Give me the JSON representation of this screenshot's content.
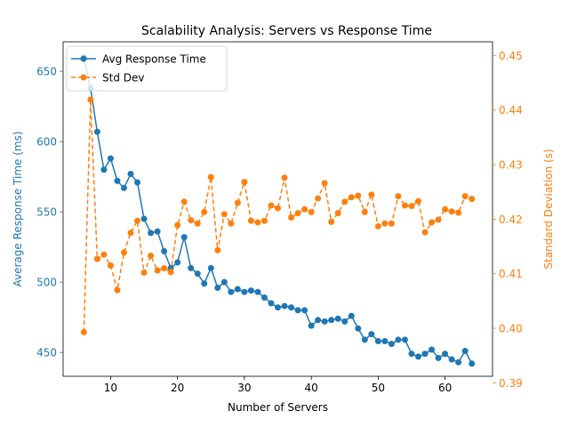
{
  "chart_data": {
    "type": "line",
    "title": "Scalability Analysis: Servers vs Response Time",
    "xlabel": "Number of Servers",
    "ylabel_left": "Average Response Time (ms)",
    "ylabel_right": "Standard Deviation (s)",
    "xlim": [
      2.9,
      67.1
    ],
    "ylim_left": [
      433,
      671
    ],
    "ylim_right": [
      0.3912,
      0.4525
    ],
    "x_ticks": [
      10,
      20,
      30,
      40,
      50,
      60
    ],
    "y_left_ticks": [
      450,
      500,
      550,
      600,
      650
    ],
    "y_right_ticks": [
      0.39,
      0.4,
      0.41,
      0.42,
      0.43,
      0.44,
      0.45
    ],
    "grid": false,
    "legend_position": "upper-left",
    "colors": {
      "left": "#1f77b4",
      "right": "#ff7f0e"
    },
    "x": [
      6,
      7,
      8,
      9,
      10,
      11,
      12,
      13,
      14,
      15,
      16,
      17,
      18,
      19,
      20,
      21,
      22,
      23,
      24,
      25,
      26,
      27,
      28,
      29,
      30,
      31,
      32,
      33,
      34,
      35,
      36,
      37,
      38,
      39,
      40,
      41,
      42,
      43,
      44,
      45,
      46,
      47,
      48,
      49,
      50,
      51,
      52,
      53,
      54,
      55,
      56,
      57,
      58,
      59,
      60,
      61,
      62,
      63,
      64
    ],
    "series": [
      {
        "name": "Avg Response Time",
        "axis": "left",
        "style": "solid",
        "values": [
          660,
          638,
          607,
          580,
          588,
          572,
          567,
          577,
          571,
          545,
          535,
          536,
          522,
          510,
          514,
          532,
          510,
          506,
          499,
          510,
          496,
          500,
          493,
          495,
          493,
          494,
          493,
          489,
          485,
          482,
          483,
          482,
          480,
          480,
          469,
          473,
          472,
          473,
          474,
          472,
          476,
          467,
          459,
          463,
          458,
          458,
          456,
          459,
          459,
          449,
          447,
          449,
          452,
          446,
          449,
          445,
          443,
          451,
          442
        ]
      },
      {
        "name": "Std Dev",
        "axis": "right",
        "style": "dashed",
        "values": [
          0.3993,
          0.4419,
          0.4127,
          0.4135,
          0.4115,
          0.407,
          0.4139,
          0.4175,
          0.4197,
          0.4102,
          0.4133,
          0.4106,
          0.411,
          0.4103,
          0.4189,
          0.4232,
          0.4198,
          0.4192,
          0.4213,
          0.4277,
          0.4143,
          0.4209,
          0.4192,
          0.423,
          0.4268,
          0.4197,
          0.4194,
          0.4197,
          0.4225,
          0.422,
          0.4276,
          0.4203,
          0.4211,
          0.4218,
          0.4213,
          0.4238,
          0.4266,
          0.4195,
          0.4211,
          0.4232,
          0.424,
          0.4243,
          0.4213,
          0.4245,
          0.4187,
          0.4192,
          0.4192,
          0.4242,
          0.4225,
          0.4224,
          0.4233,
          0.4176,
          0.4194,
          0.4199,
          0.4218,
          0.4214,
          0.4212,
          0.4242,
          0.4237
        ]
      }
    ]
  }
}
